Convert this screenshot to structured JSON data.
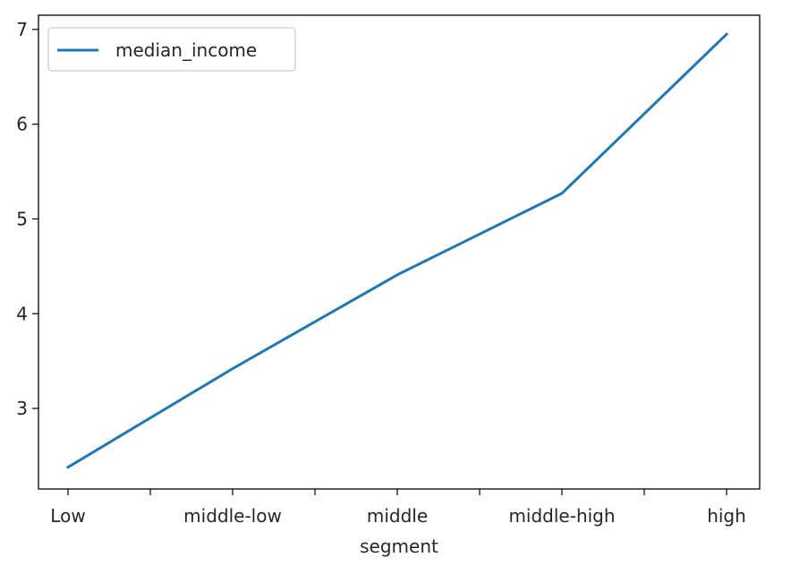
{
  "chart_data": {
    "type": "line",
    "categories": [
      "Low",
      "middle-low",
      "middle",
      "middle-high",
      "high"
    ],
    "x_tick_labels": [
      "Low",
      "middle-low",
      "middle",
      "middle-high",
      "high"
    ],
    "series": [
      {
        "name": "median_income",
        "values": [
          2.38,
          3.42,
          4.41,
          5.27,
          6.95
        ],
        "color": "#1f77b4"
      }
    ],
    "xlabel": "segment",
    "ylabel": "",
    "ylim": [
      2.15,
      7.15
    ],
    "y_ticks": [
      3,
      4,
      5,
      6,
      7
    ],
    "y_tick_labels": [
      "3",
      "4",
      "5",
      "6",
      "7"
    ],
    "grid": false,
    "legend": "top-left"
  }
}
